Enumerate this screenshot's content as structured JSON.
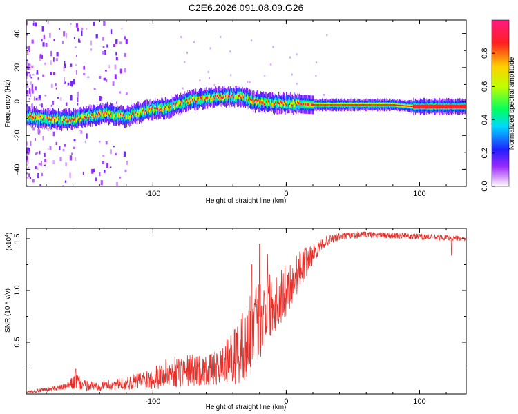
{
  "figure_title": "C2E6.2026.091.08.09.G26",
  "colors": {
    "line": "#e8302a",
    "axis": "#000000"
  },
  "chart_data": [
    {
      "type": "heatmap",
      "title": "C2E6.2026.091.08.09.G26",
      "xlabel": "Height of straight line (km)",
      "ylabel": "Frequency (Hz)",
      "xlim": [
        -195,
        135
      ],
      "ylim": [
        -50,
        48
      ],
      "x_ticks": [
        -100,
        0,
        100
      ],
      "x_tick_labels": [
        "-100",
        "0",
        "100"
      ],
      "y_ticks": [
        -40,
        -20,
        0,
        20,
        40
      ],
      "y_tick_labels": [
        "-40",
        "-20",
        "0",
        "20",
        "40"
      ],
      "ridge": {
        "x": [
          -195,
          -180,
          -165,
          -150,
          -135,
          -120,
          -105,
          -90,
          -75,
          -60,
          -45,
          -35,
          -25,
          -10,
          0,
          20,
          40,
          60,
          80,
          95,
          100,
          135
        ],
        "frequency": [
          -9,
          -10,
          -11,
          -9,
          -7,
          -9,
          -5,
          -4,
          0,
          2,
          3,
          3,
          0,
          -1,
          -1,
          -2,
          -2,
          -2,
          -2,
          -3,
          -3,
          -3
        ]
      },
      "colorbar": {
        "label": "Normalized spectral amplitude",
        "range": [
          0,
          1
        ],
        "ticks": [
          0.0,
          0.2,
          0.4,
          0.6,
          0.8
        ],
        "tick_labels": [
          "0.0",
          "0.2",
          "0.4",
          "0.6",
          "0.8"
        ]
      }
    },
    {
      "type": "line",
      "xlabel": "Height of straight line (km)",
      "ylabel": "SNR (10 * v/v)",
      "y_multiplier_label": "(x10",
      "y_multiplier_exp": "4",
      "y_multiplier_close": ")",
      "xlim": [
        -195,
        135
      ],
      "ylim": [
        0.0,
        1.6
      ],
      "x_ticks": [
        -100,
        0,
        100
      ],
      "x_tick_labels": [
        "-100",
        "0",
        "100"
      ],
      "y_ticks": [
        0.5,
        1.0,
        1.5
      ],
      "y_tick_labels": [
        "0.5",
        "1.0",
        "1.5"
      ],
      "series": [
        {
          "name": "SNR",
          "x": [
            -195,
            -180,
            -165,
            -158,
            -150,
            -140,
            -120,
            -100,
            -90,
            -80,
            -70,
            -60,
            -50,
            -40,
            -35,
            -30,
            -25,
            -20,
            -15,
            -10,
            -5,
            0,
            5,
            10,
            15,
            20,
            25,
            30,
            40,
            60,
            80,
            100,
            120,
            135
          ],
          "mean": [
            0.02,
            0.04,
            0.07,
            0.12,
            0.08,
            0.08,
            0.1,
            0.16,
            0.2,
            0.22,
            0.24,
            0.22,
            0.26,
            0.35,
            0.42,
            0.5,
            0.6,
            0.72,
            0.85,
            0.88,
            0.92,
            1.0,
            1.1,
            1.2,
            1.28,
            1.35,
            1.42,
            1.48,
            1.52,
            1.54,
            1.53,
            1.52,
            1.51,
            1.5
          ],
          "noise": [
            0.01,
            0.02,
            0.03,
            0.08,
            0.05,
            0.05,
            0.06,
            0.12,
            0.14,
            0.16,
            0.16,
            0.14,
            0.18,
            0.25,
            0.35,
            0.4,
            0.4,
            0.4,
            0.35,
            0.3,
            0.3,
            0.25,
            0.22,
            0.18,
            0.15,
            0.1,
            0.06,
            0.05,
            0.04,
            0.03,
            0.03,
            0.03,
            0.03,
            0.02
          ],
          "peak_x": [
            -158,
            -33,
            -26,
            -20,
            -14
          ],
          "peak_y": [
            0.24,
            0.78,
            1.25,
            1.45,
            1.35
          ]
        }
      ]
    }
  ]
}
